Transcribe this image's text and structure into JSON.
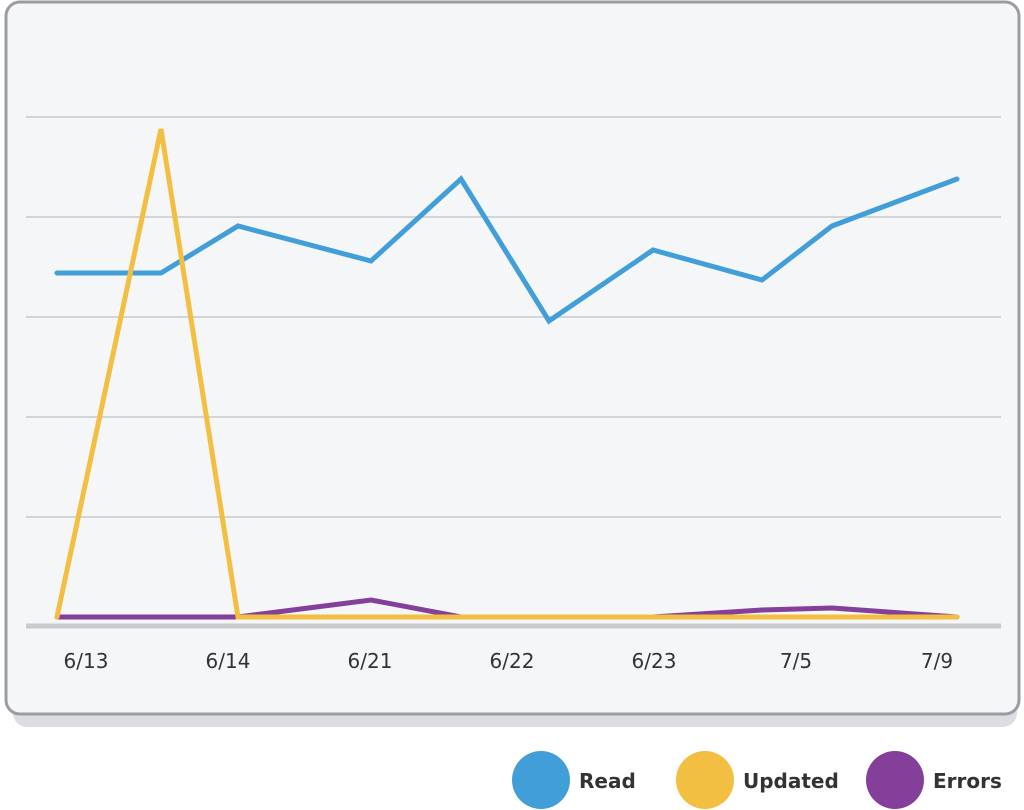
{
  "chart_data": {
    "type": "line",
    "x": [
      "6/13",
      "",
      "6/14",
      "6/21",
      "",
      "6/22",
      "6/23",
      "7/5",
      "",
      "7/9"
    ],
    "xtick_labels": [
      "6/13",
      "6/14",
      "6/21",
      "6/22",
      "6/23",
      "7/5",
      "7/9"
    ],
    "series": [
      {
        "name": "Read",
        "color": "#429ed8",
        "values": [
          3.44,
          3.44,
          3.91,
          3.56,
          4.38,
          2.96,
          3.67,
          3.37,
          3.91,
          4.38
        ]
      },
      {
        "name": "Updated",
        "color": "#f2bf42",
        "values": [
          0,
          4.88,
          0,
          0,
          0,
          0,
          0,
          0,
          0,
          0
        ]
      },
      {
        "name": "Errors",
        "color": "#843f9a",
        "values": [
          0,
          0,
          0,
          0.17,
          0,
          0,
          0,
          0.07,
          0.09,
          0
        ]
      }
    ],
    "ylim": [
      0,
      5
    ],
    "grid": true,
    "legend": "bottom-right",
    "title": "",
    "xlabel": "",
    "ylabel": ""
  }
}
